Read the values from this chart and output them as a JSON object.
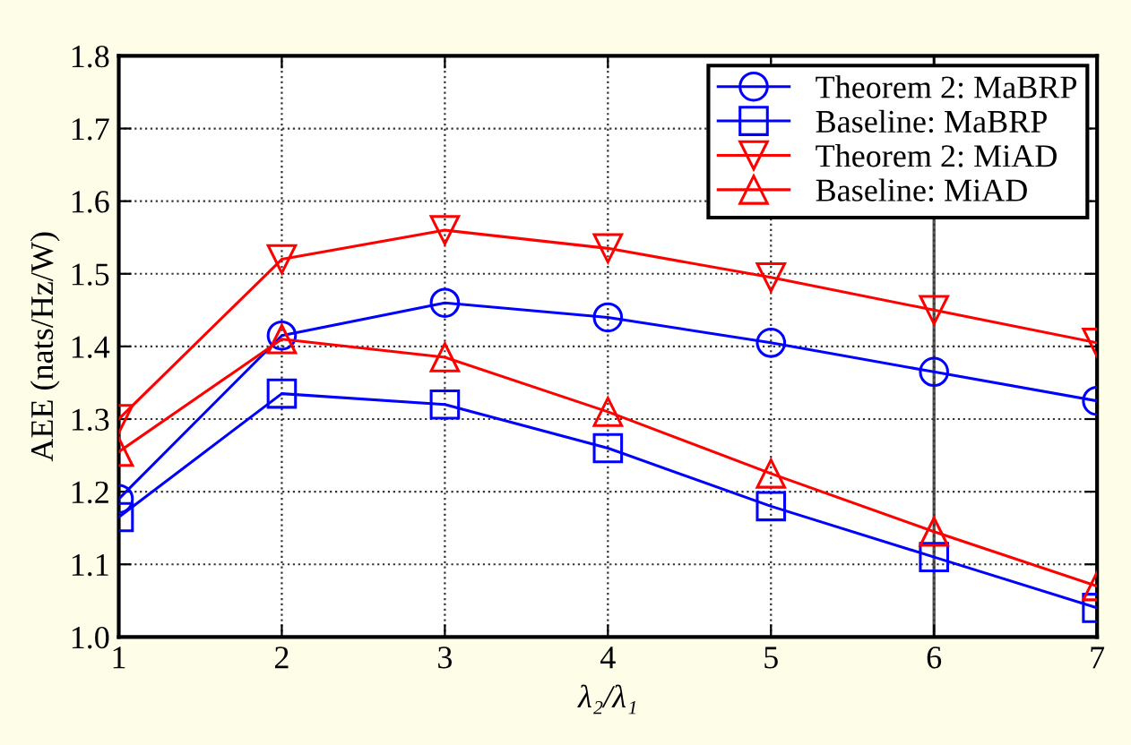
{
  "chart_data": {
    "type": "line",
    "xlabel": "λ₂/λ₁",
    "ylabel": "AEE (nats/Hz/W)",
    "x": [
      1,
      2,
      3,
      4,
      5,
      6,
      7
    ],
    "xlim": [
      1,
      7
    ],
    "xticks": [
      1,
      2,
      3,
      4,
      5,
      6,
      7
    ],
    "ylim": [
      1.0,
      1.8
    ],
    "yticks": [
      {
        "value": 1.0,
        "label": "1.0"
      },
      1.1,
      1.2,
      1.3,
      1.4,
      1.5,
      1.6,
      1.7,
      1.8
    ],
    "grid": true,
    "legend": "top right",
    "line_style": "solid",
    "ref_lines": [
      {
        "axis": "x",
        "value": 6,
        "color": "#555555",
        "line_style": "solid"
      }
    ],
    "series": [
      {
        "name": "Theorem 2: MaBRP",
        "color": "#0000ff",
        "marker": "circle",
        "values": [
          1.19,
          1.415,
          1.46,
          1.44,
          1.405,
          1.365,
          1.325
        ]
      },
      {
        "name": "Baseline: MaBRP",
        "color": "#0000ff",
        "marker": "square",
        "values": [
          1.165,
          1.335,
          1.32,
          1.26,
          1.18,
          1.11,
          1.04
        ]
      },
      {
        "name": "Theorem 2: MiAD",
        "color": "#ff0000",
        "marker": "triangle_down",
        "values": [
          1.3,
          1.52,
          1.56,
          1.535,
          1.495,
          1.45,
          1.405
        ]
      },
      {
        "name": "Baseline: MiAD",
        "color": "#ff0000",
        "marker": "triangle",
        "values": [
          1.255,
          1.41,
          1.385,
          1.31,
          1.225,
          1.145,
          1.07
        ]
      }
    ]
  }
}
